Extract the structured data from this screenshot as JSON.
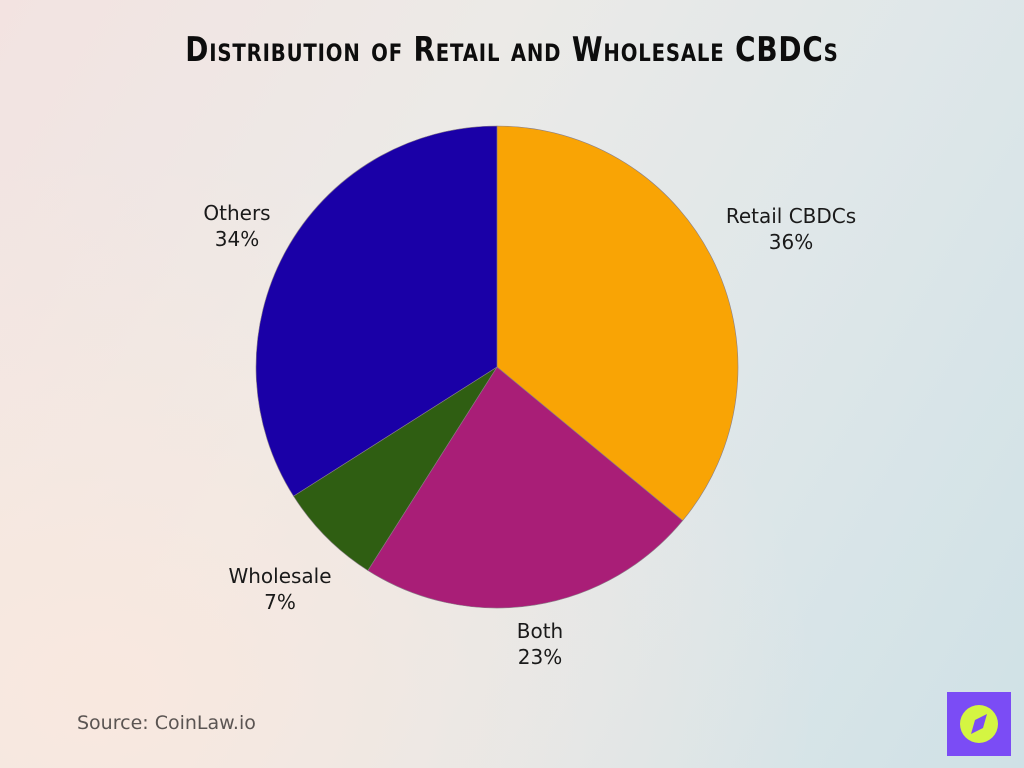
{
  "title": "Distribution of Retail and Wholesale CBDCs",
  "source": "Source: CoinLaw.io",
  "logo": {
    "icon": "compass-icon",
    "bg_color": "#7b4cf5",
    "fg_color": "#d4f542"
  },
  "chart_data": {
    "type": "pie",
    "title": "Distribution of Retail and Wholesale CBDCs",
    "categories": [
      "Retail CBDCs",
      "Both",
      "Wholesale",
      "Others"
    ],
    "values": [
      36,
      23,
      7,
      34
    ],
    "unit": "%",
    "colors": [
      "#f9a405",
      "#a91e77",
      "#2f5e12",
      "#1a00a7"
    ],
    "start_angle": "12 o'clock",
    "direction": "clockwise",
    "legend": "none (direct labels)"
  },
  "labels": [
    {
      "name": "Retail CBDCs",
      "value": "36%"
    },
    {
      "name": "Both",
      "value": "23%"
    },
    {
      "name": "Wholesale",
      "value": "7%"
    },
    {
      "name": "Others",
      "value": "34%"
    }
  ]
}
